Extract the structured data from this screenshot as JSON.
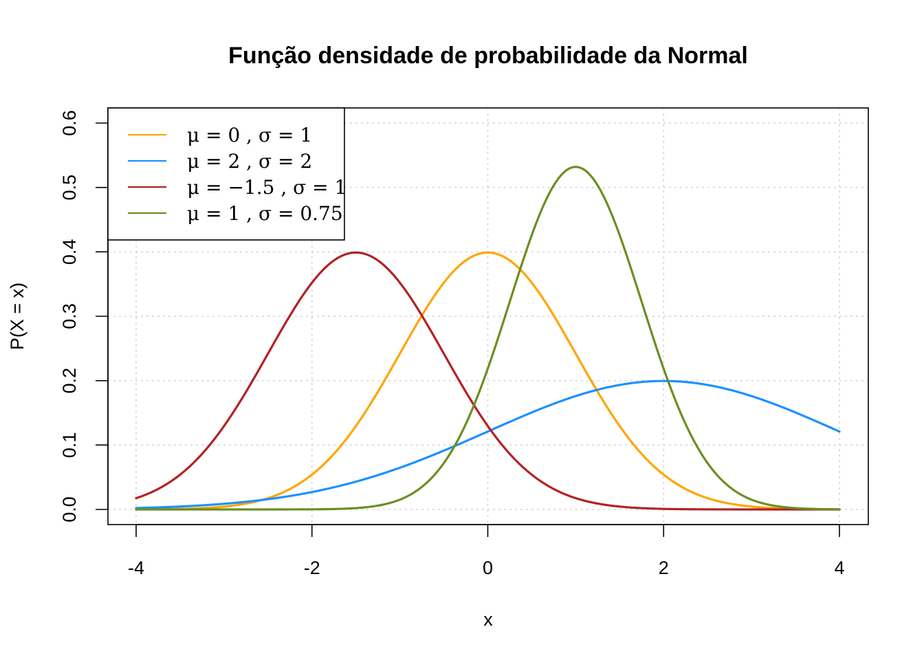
{
  "chart_data": {
    "type": "line",
    "title": "Função densidade de probabilidade da Normal",
    "xlabel": "x",
    "ylabel": "P(X = x)",
    "xlim": [
      -4,
      4
    ],
    "ylim": [
      0,
      0.6
    ],
    "xticks": [
      -4,
      -2,
      0,
      2,
      4
    ],
    "xtick_labels": [
      "-4",
      "-2",
      "0",
      "2",
      "4"
    ],
    "yticks": [
      0.0,
      0.1,
      0.2,
      0.3,
      0.4,
      0.5,
      0.6
    ],
    "ytick_labels": [
      "0.0",
      "0.1",
      "0.2",
      "0.3",
      "0.4",
      "0.5",
      "0.6"
    ],
    "grid": true,
    "legend_position": "top-left",
    "series": [
      {
        "name": "μ = 0 , σ = 1",
        "mu": 0,
        "sigma": 1,
        "color": "#FFA500"
      },
      {
        "name": "μ = 2 , σ = 2",
        "mu": 2,
        "sigma": 2,
        "color": "#1E90FF"
      },
      {
        "name": "μ = −1.5 , σ = 1",
        "mu": -1.5,
        "sigma": 1,
        "color": "#B22222"
      },
      {
        "name": "μ = 1 , σ = 0.75",
        "mu": 1,
        "sigma": 0.75,
        "color": "#6B8E23"
      }
    ]
  }
}
